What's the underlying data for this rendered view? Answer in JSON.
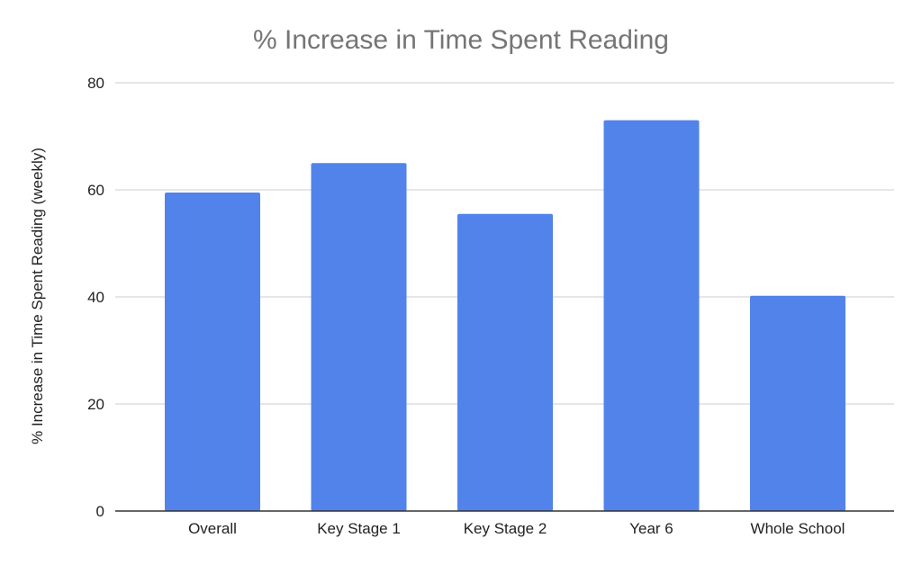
{
  "chart_data": {
    "type": "bar",
    "title": "% Increase in Time Spent Reading",
    "xlabel": "",
    "ylabel": "% Increase in Time Spent Reading (weekly)",
    "categories": [
      "Overall",
      "Key Stage 1",
      "Key Stage 2",
      "Year 6",
      "Whole School"
    ],
    "values": [
      59.5,
      65,
      55.5,
      73,
      40.2
    ],
    "ylim": [
      0,
      80
    ],
    "yticks": [
      "0",
      "20",
      "40",
      "60",
      "80"
    ],
    "grid": true,
    "legend": "none",
    "bar_color": "#5283EA"
  }
}
